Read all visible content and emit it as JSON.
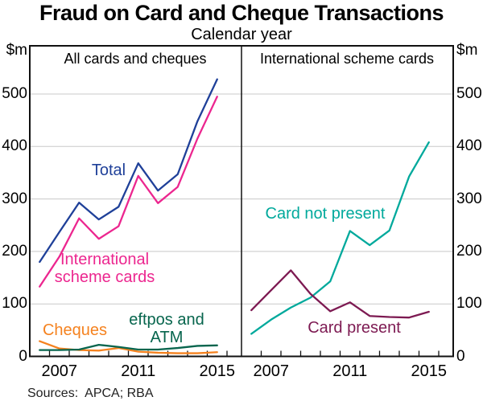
{
  "chart_data": {
    "type": "line",
    "title": "Fraud on Card and Cheque Transactions",
    "subtitle": "Calendar year",
    "unit_label": "$m",
    "source_note": "Sources:  APCA; RBA",
    "x": [
      2006,
      2007,
      2008,
      2009,
      2010,
      2011,
      2012,
      2013,
      2014,
      2015
    ],
    "x_tick_labels": [
      2007,
      2011,
      2015
    ],
    "y_ticks": [
      0,
      100,
      200,
      300,
      400,
      500
    ],
    "ylim": [
      0,
      592
    ],
    "grid": "horizontal-gridlines",
    "panels": [
      {
        "label": "All cards and cheques",
        "series": [
          {
            "id": "total",
            "name": "Total",
            "color": "#1F4099",
            "values": [
              180,
              237,
              293,
              261,
              285,
              368,
              316,
              347,
              448,
              528
            ],
            "annotation": {
              "text": "Total",
              "x_center": 135,
              "y_top": 202
            }
          },
          {
            "id": "international-scheme-cards",
            "name": "International scheme cards",
            "color": "#EC268F",
            "values": [
              133,
              190,
              263,
              224,
              248,
              344,
              292,
              323,
              415,
              495
            ],
            "annotation": {
              "text": "International\nscheme cards",
              "x_center": 130,
              "y_top": 313
            }
          },
          {
            "id": "cheques",
            "name": "Cheques",
            "color": "#F5821F",
            "values": [
              29,
              15,
              12,
              11,
              16,
              9,
              7,
              6,
              6,
              8
            ],
            "annotation": {
              "text": "Cheques",
              "x_center": 93,
              "y_top": 401
            }
          },
          {
            "id": "eftpos-and-atm",
            "name": "eftpos and ATM",
            "color": "#07654D",
            "values": [
              12,
              12,
              13,
              22,
              18,
              13,
              13,
              16,
              20,
              21
            ],
            "annotation": {
              "text": "eftpos and\nATM",
              "x_center": 207,
              "y_top": 388
            }
          }
        ]
      },
      {
        "label": "International scheme cards",
        "series": [
          {
            "id": "card-not-present",
            "name": "Card not present",
            "color": "#00A99C",
            "values": [
              43,
              70,
              93,
              112,
              143,
              239,
              212,
              240,
              343,
              408
            ],
            "annotation": {
              "text": "Card not present",
              "x_center": 404,
              "y_top": 256
            }
          },
          {
            "id": "card-present",
            "name": "Card present",
            "color": "#7D1A52",
            "values": [
              88,
              126,
              164,
              119,
              86,
              103,
              77,
              75,
              74,
              85
            ],
            "annotation": {
              "text": "Card present",
              "x_center": 440,
              "y_top": 398
            }
          }
        ]
      }
    ],
    "layout": {
      "grid_color": "#C8C8C8",
      "axis_color": "#111111",
      "legend": "inline-colored-labels"
    }
  }
}
